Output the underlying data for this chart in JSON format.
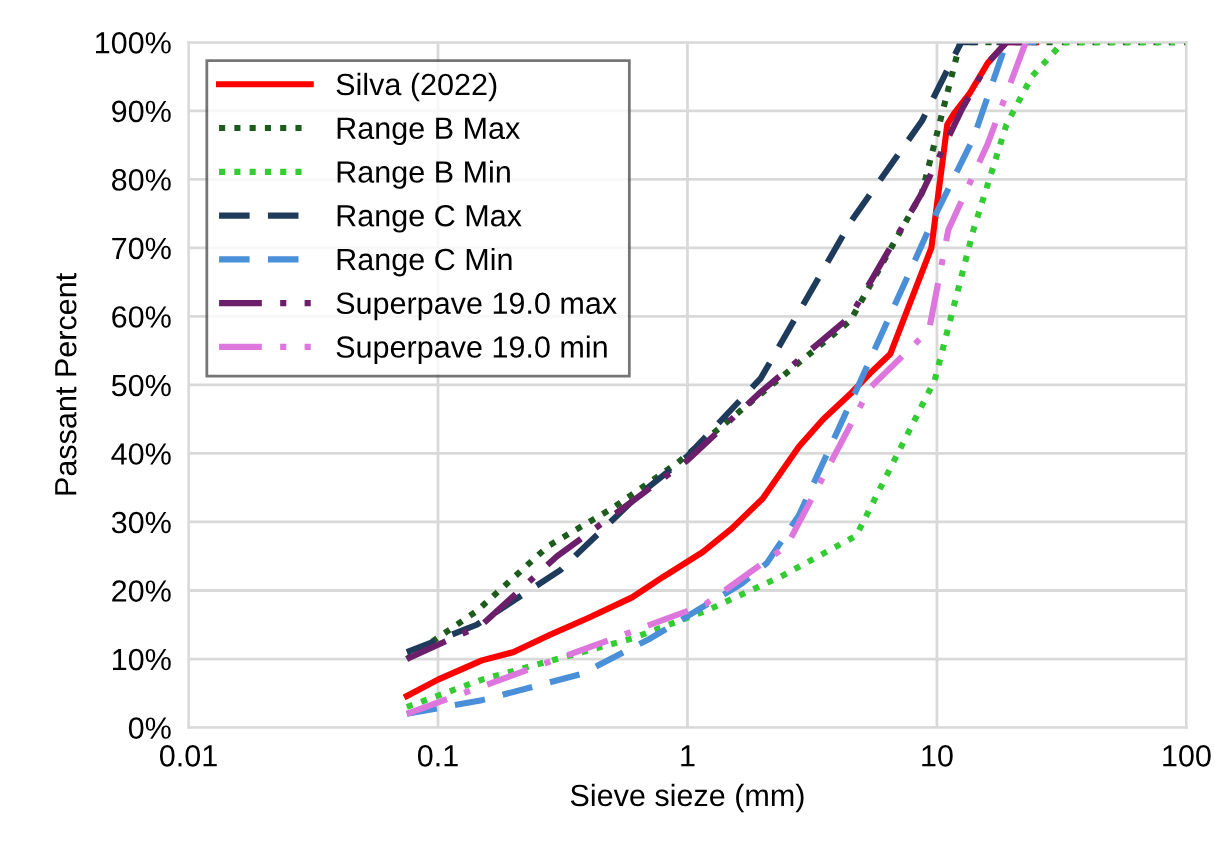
{
  "chart_data": {
    "type": "line",
    "xlabel": "Sieve sieze (mm)",
    "ylabel": "Passant Percent",
    "log": "x",
    "xlim": [
      0.01,
      100
    ],
    "xticks": [
      0.01,
      0.1,
      1,
      10,
      100
    ],
    "ylim": [
      0,
      100
    ],
    "yticks": [
      {
        "value": 0,
        "label": "0%"
      },
      {
        "value": 10,
        "label": "10%"
      },
      {
        "value": 20,
        "label": "20%"
      },
      {
        "value": 30,
        "label": "30%"
      },
      {
        "value": 40,
        "label": "40%"
      },
      {
        "value": 50,
        "label": "50%"
      },
      {
        "value": 60,
        "label": "60%"
      },
      {
        "value": 70,
        "label": "70%"
      },
      {
        "value": 80,
        "label": "80%"
      },
      {
        "value": 90,
        "label": "90%"
      },
      {
        "value": 100,
        "label": "100%"
      }
    ],
    "grid": true,
    "legend": "top left",
    "marker": "none",
    "series": [
      {
        "name": "Silva (2022)",
        "color": "#ff0000",
        "line_style": "solid",
        "x": [
          0.075,
          0.1,
          0.15,
          0.2,
          0.28,
          0.4,
          0.6,
          0.8,
          1.15,
          1.5,
          2,
          2.8,
          3.5,
          4.5,
          5.5,
          6.5,
          8,
          9.5,
          11,
          11.7,
          13.5,
          16,
          19,
          25
        ],
        "values": [
          4.6,
          7,
          9.8,
          11,
          13.5,
          16,
          19,
          22,
          25.6,
          29,
          33.4,
          41,
          45,
          48.7,
          52,
          54.5,
          63,
          70,
          88,
          89.6,
          92.5,
          97,
          100,
          100
        ]
      },
      {
        "name": "Range B Max",
        "color": "#1e5c1e",
        "line_style": "dotted",
        "x": [
          0.075,
          0.143,
          0.277,
          0.5,
          0.91,
          1.97,
          4.5,
          8.7,
          12.4,
          100
        ],
        "values": [
          10,
          17,
          26.5,
          32,
          38.6,
          48.7,
          59.4,
          78,
          100,
          100
        ]
      },
      {
        "name": "Range B Min",
        "color": "#33cc33",
        "line_style": "dotted",
        "x": [
          0.075,
          0.15,
          0.3,
          0.6,
          1.18,
          2.36,
          4.75,
          9.8,
          14,
          19,
          24,
          32,
          90
        ],
        "values": [
          3,
          7,
          10,
          13,
          17,
          22,
          28,
          50.7,
          72.6,
          88,
          95,
          100,
          100
        ]
      },
      {
        "name": "Range C Max",
        "color": "#1f3b5c",
        "line_style": "dashed",
        "x": [
          0.075,
          0.143,
          0.31,
          0.64,
          1,
          1.97,
          4.55,
          8.7,
          12.5,
          19
        ],
        "values": [
          11,
          15,
          23,
          34,
          39.6,
          51,
          74,
          88.5,
          100,
          100
        ]
      },
      {
        "name": "Range C Min",
        "color": "#4a90d9",
        "line_style": "dashed",
        "x": [
          0.075,
          0.15,
          0.375,
          0.71,
          1.65,
          2.08,
          2.8,
          4.8,
          9.8,
          14,
          19,
          25
        ],
        "values": [
          2,
          4,
          7.8,
          13,
          21,
          24,
          31,
          49.6,
          74.6,
          86,
          100,
          100
        ]
      },
      {
        "name": "Superpave 19.0 max",
        "color": "#6b1f6b",
        "line_style": "dashdot",
        "x": [
          0.075,
          0.15,
          0.3,
          0.6,
          1,
          1.97,
          4.5,
          8.7,
          12.5,
          16,
          19,
          25
        ],
        "values": [
          10,
          15,
          25,
          33,
          39,
          49,
          60,
          78,
          90,
          97,
          100,
          100
        ]
      },
      {
        "name": "Superpave 19.0 min",
        "color": "#dd77dd",
        "line_style": "dashdot",
        "x": [
          0.075,
          0.15,
          0.3,
          0.6,
          1.18,
          2.5,
          5.4,
          9.3,
          11.1,
          15.9,
          22.7,
          25
        ],
        "values": [
          2,
          6,
          10,
          14,
          18,
          26.5,
          49.6,
          58,
          72.6,
          85,
          100,
          100
        ]
      }
    ]
  }
}
